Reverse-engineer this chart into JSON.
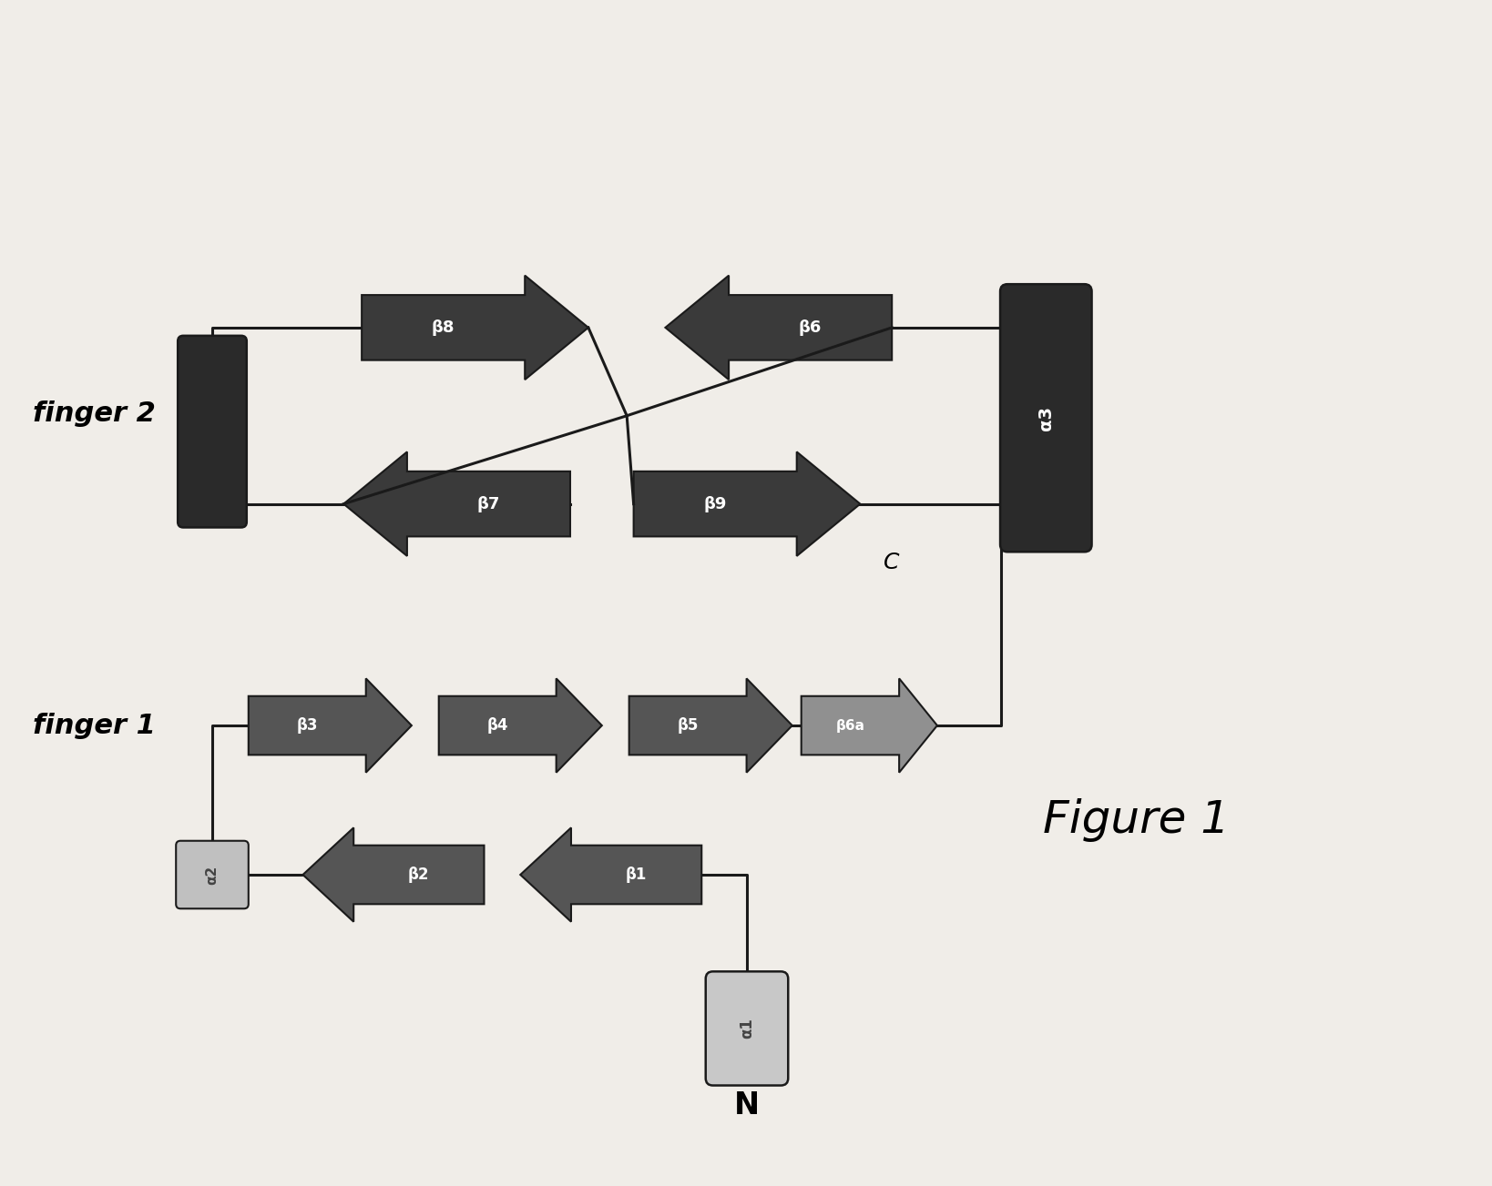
{
  "bg_color": "#f0ede8",
  "title": "Figure 1",
  "finger1_label": "finger 1",
  "finger2_label": "finger 2",
  "N_label": "N",
  "C_label": "C",
  "elements": {
    "alpha1": {
      "label": "α1",
      "color": "#c8c8c8",
      "text_color": "#444444"
    },
    "beta1": {
      "label": "β1",
      "color": "#555555",
      "text_color": "#ffffff"
    },
    "beta2": {
      "label": "β2",
      "color": "#555555",
      "text_color": "#ffffff"
    },
    "alpha2": {
      "label": "α2",
      "color": "#c0c0c0",
      "text_color": "#444444"
    },
    "beta3": {
      "label": "β3",
      "color": "#555555",
      "text_color": "#ffffff"
    },
    "beta4": {
      "label": "β4",
      "color": "#555555",
      "text_color": "#ffffff"
    },
    "beta5": {
      "label": "β5",
      "color": "#555555",
      "text_color": "#ffffff"
    },
    "beta6a": {
      "label": "β6a",
      "color": "#909090",
      "text_color": "#ffffff"
    },
    "beta8": {
      "label": "β8",
      "color": "#3a3a3a",
      "text_color": "#ffffff"
    },
    "beta6": {
      "label": "β6",
      "color": "#3a3a3a",
      "text_color": "#ffffff"
    },
    "beta7": {
      "label": "β7",
      "color": "#3a3a3a",
      "text_color": "#ffffff"
    },
    "beta9": {
      "label": "β9",
      "color": "#3a3a3a",
      "text_color": "#ffffff"
    },
    "alpha3": {
      "label": "α3",
      "color": "#2a2a2a",
      "text_color": "#ffffff"
    }
  }
}
